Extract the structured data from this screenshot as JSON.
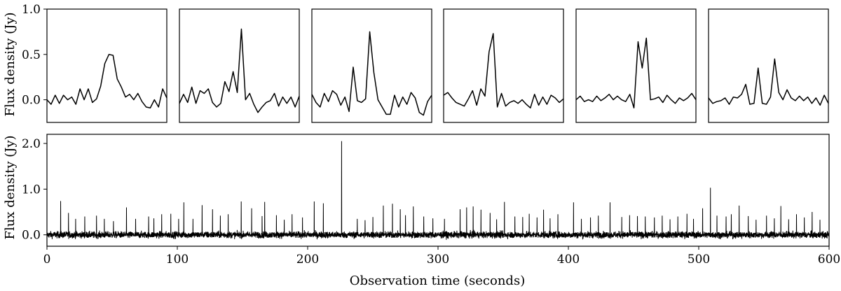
{
  "chart_data": [
    {
      "type": "line",
      "panel": "top-1",
      "ylabel": "Flux density (Jy)",
      "ylim": [
        -0.25,
        1.0
      ],
      "yticks": [
        0.0,
        0.5,
        1.0
      ],
      "ytick_labels": [
        "0.0",
        "0.5",
        "1.0"
      ],
      "xlim": [
        0,
        29
      ],
      "values": [
        0.0,
        -0.05,
        0.05,
        -0.04,
        0.05,
        0.0,
        0.03,
        -0.05,
        0.12,
        0.0,
        0.12,
        -0.03,
        0.01,
        0.15,
        0.4,
        0.5,
        0.49,
        0.23,
        0.14,
        0.03,
        0.06,
        0.0,
        0.07,
        -0.02,
        -0.08,
        -0.09,
        0.0,
        -0.08,
        0.12,
        0.02
      ]
    },
    {
      "type": "line",
      "panel": "top-2",
      "ylim": [
        -0.25,
        1.0
      ],
      "xlim": [
        0,
        29
      ],
      "values": [
        -0.04,
        0.06,
        -0.03,
        0.14,
        -0.04,
        0.1,
        0.07,
        0.12,
        -0.03,
        -0.08,
        -0.04,
        0.2,
        0.09,
        0.31,
        0.08,
        0.78,
        0.0,
        0.07,
        -0.05,
        -0.14,
        -0.08,
        -0.03,
        -0.01,
        0.07,
        -0.07,
        0.03,
        -0.04,
        0.03,
        -0.08,
        0.04
      ]
    },
    {
      "type": "line",
      "panel": "top-3",
      "ylim": [
        -0.25,
        1.0
      ],
      "xlim": [
        0,
        29
      ],
      "values": [
        0.06,
        -0.03,
        -0.08,
        0.07,
        -0.02,
        0.1,
        0.06,
        -0.06,
        0.03,
        -0.13,
        0.36,
        -0.01,
        -0.03,
        0.01,
        0.75,
        0.3,
        0.0,
        -0.08,
        -0.16,
        -0.16,
        0.05,
        -0.08,
        0.03,
        -0.05,
        0.08,
        0.02,
        -0.14,
        -0.17,
        -0.02,
        0.05
      ]
    },
    {
      "type": "line",
      "panel": "top-4",
      "ylim": [
        -0.25,
        1.0
      ],
      "xlim": [
        0,
        29
      ],
      "values": [
        0.05,
        0.08,
        0.02,
        -0.03,
        -0.05,
        -0.07,
        0.01,
        0.1,
        -0.06,
        0.12,
        0.04,
        0.53,
        0.73,
        -0.08,
        0.07,
        -0.07,
        -0.03,
        -0.01,
        -0.04,
        0.0,
        -0.05,
        -0.09,
        0.06,
        -0.06,
        0.03,
        -0.05,
        0.05,
        0.02,
        -0.03,
        0.01
      ]
    },
    {
      "type": "line",
      "panel": "top-5",
      "ylim": [
        -0.25,
        1.0
      ],
      "xlim": [
        0,
        29
      ],
      "values": [
        0.0,
        0.04,
        -0.02,
        0.0,
        -0.02,
        0.04,
        -0.01,
        0.02,
        0.06,
        0.0,
        0.04,
        0.0,
        -0.02,
        0.06,
        -0.09,
        0.64,
        0.35,
        0.68,
        0.0,
        0.01,
        0.03,
        -0.03,
        0.05,
        0.0,
        -0.04,
        0.02,
        -0.01,
        0.02,
        0.07,
        0.0
      ]
    },
    {
      "type": "line",
      "panel": "top-6",
      "ylim": [
        -0.25,
        1.0
      ],
      "xlim": [
        0,
        29
      ],
      "values": [
        0.02,
        -0.04,
        -0.02,
        -0.01,
        0.02,
        -0.05,
        0.03,
        0.02,
        0.06,
        0.17,
        -0.05,
        -0.04,
        0.35,
        -0.04,
        -0.05,
        0.03,
        0.45,
        0.08,
        0.0,
        0.11,
        0.02,
        -0.01,
        0.04,
        -0.01,
        0.03,
        -0.04,
        0.02,
        -0.06,
        0.05,
        -0.04
      ]
    },
    {
      "type": "line",
      "panel": "bottom",
      "xlabel": "Observation time (seconds)",
      "ylabel": "Flux density (Jy)",
      "xlim": [
        0,
        600
      ],
      "ylim": [
        -0.25,
        2.2
      ],
      "xticks": [
        0,
        100,
        200,
        300,
        400,
        500,
        600
      ],
      "xtick_labels": [
        "0",
        "100",
        "200",
        "300",
        "400",
        "500",
        "600"
      ],
      "yticks": [
        0.0,
        1.0,
        2.0
      ],
      "ytick_labels": [
        "0.0",
        "1.0",
        "2.0"
      ],
      "noise_level_jy": 0.06,
      "spikes": [
        {
          "x": 10.5,
          "y": 0.74
        },
        {
          "x": 16.5,
          "y": 0.48
        },
        {
          "x": 22,
          "y": 0.35
        },
        {
          "x": 29,
          "y": 0.4
        },
        {
          "x": 38,
          "y": 0.42
        },
        {
          "x": 44,
          "y": 0.35
        },
        {
          "x": 51,
          "y": 0.3
        },
        {
          "x": 61,
          "y": 0.6
        },
        {
          "x": 68,
          "y": 0.35
        },
        {
          "x": 78,
          "y": 0.4
        },
        {
          "x": 82,
          "y": 0.36
        },
        {
          "x": 88,
          "y": 0.45
        },
        {
          "x": 95,
          "y": 0.46
        },
        {
          "x": 101,
          "y": 0.35
        },
        {
          "x": 105,
          "y": 0.71
        },
        {
          "x": 112,
          "y": 0.35
        },
        {
          "x": 119,
          "y": 0.65
        },
        {
          "x": 127,
          "y": 0.56
        },
        {
          "x": 133,
          "y": 0.42
        },
        {
          "x": 139,
          "y": 0.45
        },
        {
          "x": 149,
          "y": 0.73
        },
        {
          "x": 157,
          "y": 0.58
        },
        {
          "x": 165,
          "y": 0.41
        },
        {
          "x": 167,
          "y": 0.72
        },
        {
          "x": 176,
          "y": 0.43
        },
        {
          "x": 182,
          "y": 0.33
        },
        {
          "x": 188,
          "y": 0.45
        },
        {
          "x": 196,
          "y": 0.38
        },
        {
          "x": 205,
          "y": 0.73
        },
        {
          "x": 212,
          "y": 0.69
        },
        {
          "x": 226,
          "y": 2.05
        },
        {
          "x": 238,
          "y": 0.35
        },
        {
          "x": 244,
          "y": 0.32
        },
        {
          "x": 250,
          "y": 0.39
        },
        {
          "x": 258,
          "y": 0.64
        },
        {
          "x": 265,
          "y": 0.68
        },
        {
          "x": 271,
          "y": 0.56
        },
        {
          "x": 275,
          "y": 0.43
        },
        {
          "x": 281,
          "y": 0.62
        },
        {
          "x": 289,
          "y": 0.4
        },
        {
          "x": 296,
          "y": 0.36
        },
        {
          "x": 305,
          "y": 0.35
        },
        {
          "x": 317,
          "y": 0.56
        },
        {
          "x": 322,
          "y": 0.6
        },
        {
          "x": 327,
          "y": 0.62
        },
        {
          "x": 333,
          "y": 0.55
        },
        {
          "x": 340,
          "y": 0.48
        },
        {
          "x": 345,
          "y": 0.34
        },
        {
          "x": 351,
          "y": 0.72
        },
        {
          "x": 359,
          "y": 0.4
        },
        {
          "x": 365,
          "y": 0.39
        },
        {
          "x": 370,
          "y": 0.46
        },
        {
          "x": 376,
          "y": 0.38
        },
        {
          "x": 381,
          "y": 0.55
        },
        {
          "x": 386,
          "y": 0.36
        },
        {
          "x": 392,
          "y": 0.45
        },
        {
          "x": 404,
          "y": 0.71
        },
        {
          "x": 410,
          "y": 0.35
        },
        {
          "x": 417,
          "y": 0.38
        },
        {
          "x": 423,
          "y": 0.42
        },
        {
          "x": 432,
          "y": 0.71
        },
        {
          "x": 441,
          "y": 0.39
        },
        {
          "x": 447,
          "y": 0.43
        },
        {
          "x": 453,
          "y": 0.41
        },
        {
          "x": 459,
          "y": 0.4
        },
        {
          "x": 466,
          "y": 0.38
        },
        {
          "x": 472,
          "y": 0.42
        },
        {
          "x": 478,
          "y": 0.34
        },
        {
          "x": 484,
          "y": 0.4
        },
        {
          "x": 491,
          "y": 0.46
        },
        {
          "x": 496,
          "y": 0.35
        },
        {
          "x": 503,
          "y": 0.58
        },
        {
          "x": 509,
          "y": 1.03
        },
        {
          "x": 514,
          "y": 0.42
        },
        {
          "x": 521,
          "y": 0.4
        },
        {
          "x": 525,
          "y": 0.45
        },
        {
          "x": 531,
          "y": 0.64
        },
        {
          "x": 538,
          "y": 0.41
        },
        {
          "x": 544,
          "y": 0.33
        },
        {
          "x": 552,
          "y": 0.42
        },
        {
          "x": 558,
          "y": 0.36
        },
        {
          "x": 563,
          "y": 0.63
        },
        {
          "x": 569,
          "y": 0.34
        },
        {
          "x": 575,
          "y": 0.45
        },
        {
          "x": 581,
          "y": 0.38
        },
        {
          "x": 587,
          "y": 0.5
        },
        {
          "x": 593,
          "y": 0.33
        }
      ]
    }
  ]
}
